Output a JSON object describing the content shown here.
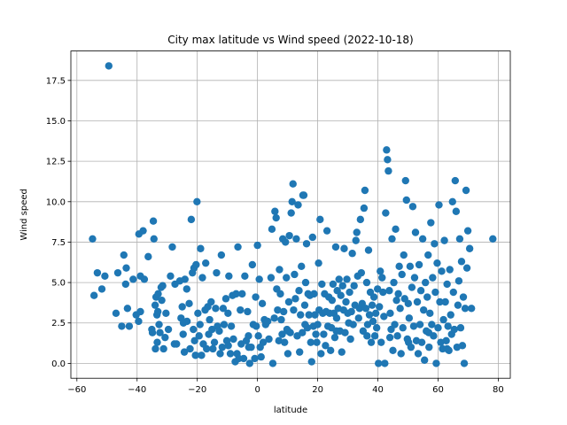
{
  "chart_data": {
    "type": "scatter",
    "title": "City max latitude vs Wind speed (2022-10-18)",
    "xlabel": "latitude",
    "ylabel": "Wind speed",
    "xlim": [
      -62,
      84
    ],
    "ylim": [
      -0.92,
      19.32
    ],
    "xticks": [
      -60,
      -40,
      -20,
      0,
      20,
      40,
      60,
      80
    ],
    "xtick_labels": [
      "−60",
      "−40",
      "−20",
      "0",
      "20",
      "40",
      "60",
      "80"
    ],
    "yticks": [
      0,
      2.5,
      5,
      7.5,
      10,
      12.5,
      15,
      17.5
    ],
    "ytick_labels": [
      "0.0",
      "2.5",
      "5.0",
      "7.5",
      "10.0",
      "12.5",
      "15.0",
      "17.5"
    ],
    "grid": true,
    "color": "#1f77b4",
    "points": [
      [
        -54.8,
        7.7
      ],
      [
        -54.3,
        4.2
      ],
      [
        -53.2,
        5.6
      ],
      [
        -51.7,
        4.6
      ],
      [
        -50.7,
        5.4
      ],
      [
        -49.4,
        18.4
      ],
      [
        -47.0,
        3.1
      ],
      [
        -46.4,
        5.6
      ],
      [
        -45.1,
        2.3
      ],
      [
        -44.4,
        6.7
      ],
      [
        -43.8,
        4.9
      ],
      [
        -43.6,
        5.9
      ],
      [
        -43.2,
        3.4
      ],
      [
        -42.6,
        2.3
      ],
      [
        -41.3,
        5.2
      ],
      [
        -40.3,
        3.0
      ],
      [
        -39.5,
        2.6
      ],
      [
        -39.4,
        8.0
      ],
      [
        -38.9,
        3.2
      ],
      [
        -38.9,
        5.4
      ],
      [
        -38.0,
        8.2
      ],
      [
        -37.6,
        5.2
      ],
      [
        -36.3,
        6.6
      ],
      [
        -35.1,
        2.1
      ],
      [
        -34.9,
        1.9
      ],
      [
        -34.6,
        8.8
      ],
      [
        -34.4,
        7.7
      ],
      [
        -34.0,
        3.6
      ],
      [
        -33.9,
        0.9
      ],
      [
        -33.7,
        4.1
      ],
      [
        -33.4,
        3.0
      ],
      [
        -33.3,
        1.3
      ],
      [
        -33.1,
        3.2
      ],
      [
        -33.0,
        4.3
      ],
      [
        -32.7,
        2.4
      ],
      [
        -32.4,
        1.9
      ],
      [
        -32.0,
        4.7
      ],
      [
        -31.8,
        3.9
      ],
      [
        -31.5,
        4.8
      ],
      [
        -31.2,
        0.9
      ],
      [
        -30.7,
        1.6
      ],
      [
        -30.4,
        3.1
      ],
      [
        -29.6,
        2.1
      ],
      [
        -28.9,
        5.4
      ],
      [
        -28.3,
        7.2
      ],
      [
        -27.6,
        1.2
      ],
      [
        -27.4,
        4.9
      ],
      [
        -26.9,
        1.2
      ],
      [
        -25.8,
        5.1
      ],
      [
        -25.4,
        2.8
      ],
      [
        -25.0,
        3.5
      ],
      [
        -24.7,
        1.8
      ],
      [
        -24.3,
        0.7
      ],
      [
        -24.1,
        5.2
      ],
      [
        -23.5,
        4.6
      ],
      [
        -23.4,
        2.6
      ],
      [
        -22.7,
        3.7
      ],
      [
        -22.4,
        0.9
      ],
      [
        -22.0,
        8.9
      ],
      [
        -21.6,
        5.6
      ],
      [
        -21.3,
        2.1
      ],
      [
        -21.1,
        5.9
      ],
      [
        -20.9,
        1.4
      ],
      [
        -20.6,
        0.5
      ],
      [
        -20.4,
        6.1
      ],
      [
        -20.1,
        10.0
      ],
      [
        -19.8,
        3.1
      ],
      [
        -19.4,
        1.7
      ],
      [
        -19.1,
        2.4
      ],
      [
        -18.9,
        7.1
      ],
      [
        -18.6,
        0.5
      ],
      [
        -18.3,
        5.3
      ],
      [
        -18.0,
        1.2
      ],
      [
        -17.4,
        3.3
      ],
      [
        -17.2,
        6.2
      ],
      [
        -16.9,
        0.9
      ],
      [
        -16.5,
        3.5
      ],
      [
        -16.2,
        1.8
      ],
      [
        -15.9,
        2.7
      ],
      [
        -15.4,
        3.8
      ],
      [
        -15.1,
        2.1
      ],
      [
        -14.8,
        0.9
      ],
      [
        -14.3,
        1.3
      ],
      [
        -13.9,
        3.4
      ],
      [
        -13.6,
        5.6
      ],
      [
        -13.3,
        2.3
      ],
      [
        -12.7,
        2.0
      ],
      [
        -12.4,
        0.6
      ],
      [
        -12.0,
        6.7
      ],
      [
        -11.7,
        1.0
      ],
      [
        -11.4,
        3.4
      ],
      [
        -11.1,
        2.4
      ],
      [
        -10.5,
        4.0
      ],
      [
        -10.2,
        1.4
      ],
      [
        -9.8,
        3.1
      ],
      [
        -9.5,
        5.4
      ],
      [
        -9.0,
        0.6
      ],
      [
        -8.7,
        2.3
      ],
      [
        -8.3,
        4.2
      ],
      [
        -8.0,
        1.5
      ],
      [
        -7.4,
        0.1
      ],
      [
        -7.1,
        4.3
      ],
      [
        -6.8,
        0.6
      ],
      [
        -6.5,
        7.2
      ],
      [
        -6.2,
        0.3
      ],
      [
        -5.7,
        3.3
      ],
      [
        -5.4,
        1.2
      ],
      [
        -5.1,
        4.3
      ],
      [
        -4.6,
        0.3
      ],
      [
        -4.2,
        5.4
      ],
      [
        -3.7,
        1.4
      ],
      [
        -3.3,
        3.2
      ],
      [
        -2.9,
        1.0
      ],
      [
        -2.6,
        0.0
      ],
      [
        -2.1,
        1.0
      ],
      [
        -1.7,
        6.1
      ],
      [
        -1.4,
        2.4
      ],
      [
        -0.9,
        0.3
      ],
      [
        -0.6,
        4.1
      ],
      [
        -0.4,
        2.3
      ],
      [
        0.0,
        7.3
      ],
      [
        0.3,
        1.7
      ],
      [
        0.6,
        5.2
      ],
      [
        0.9,
        1.0
      ],
      [
        1.2,
        0.4
      ],
      [
        1.6,
        3.7
      ],
      [
        1.9,
        1.3
      ],
      [
        2.3,
        2.7
      ],
      [
        2.7,
        2.4
      ],
      [
        3.4,
        2.6
      ],
      [
        3.8,
        1.5
      ],
      [
        4.5,
        5.3
      ],
      [
        4.8,
        8.3
      ],
      [
        5.1,
        0.0
      ],
      [
        5.6,
        2.8
      ],
      [
        5.8,
        9.4
      ],
      [
        6.2,
        9.0
      ],
      [
        6.4,
        4.6
      ],
      [
        6.7,
        3.3
      ],
      [
        7.1,
        1.4
      ],
      [
        7.3,
        5.8
      ],
      [
        7.6,
        4.3
      ],
      [
        7.9,
        2.7
      ],
      [
        8.2,
        1.8
      ],
      [
        8.4,
        7.7
      ],
      [
        8.7,
        3.2
      ],
      [
        9.0,
        1.3
      ],
      [
        9.3,
        7.5
      ],
      [
        9.6,
        5.3
      ],
      [
        9.8,
        2.1
      ],
      [
        10.1,
        0.6
      ],
      [
        10.4,
        3.8
      ],
      [
        10.6,
        7.9
      ],
      [
        10.9,
        1.9
      ],
      [
        11.2,
        9.3
      ],
      [
        11.5,
        10.0
      ],
      [
        11.8,
        11.1
      ],
      [
        12.0,
        3.3
      ],
      [
        12.3,
        5.5
      ],
      [
        12.6,
        4.0
      ],
      [
        12.9,
        7.7
      ],
      [
        13.2,
        1.7
      ],
      [
        13.5,
        9.8
      ],
      [
        13.8,
        4.5
      ],
      [
        14.0,
        0.7
      ],
      [
        14.3,
        3.0
      ],
      [
        14.6,
        6.0
      ],
      [
        14.9,
        1.9
      ],
      [
        15.1,
        10.4
      ],
      [
        15.4,
        10.4
      ],
      [
        15.7,
        3.6
      ],
      [
        16.0,
        5.0
      ],
      [
        16.3,
        7.4
      ],
      [
        16.6,
        2.2
      ],
      [
        16.8,
        4.3
      ],
      [
        17.1,
        3.0
      ],
      [
        17.4,
        4.2
      ],
      [
        17.7,
        1.3
      ],
      [
        18.0,
        0.1
      ],
      [
        18.3,
        7.8
      ],
      [
        18.6,
        2.3
      ],
      [
        18.8,
        4.3
      ],
      [
        19.1,
        3.0
      ],
      [
        19.4,
        1.8
      ],
      [
        19.7,
        1.3
      ],
      [
        20.0,
        2.4
      ],
      [
        20.3,
        6.2
      ],
      [
        20.5,
        3.3
      ],
      [
        20.8,
        8.9
      ],
      [
        21.1,
        0.6
      ],
      [
        21.4,
        4.9
      ],
      [
        21.7,
        3.1
      ],
      [
        22.0,
        1.8
      ],
      [
        22.3,
        4.3
      ],
      [
        22.6,
        1.1
      ],
      [
        22.8,
        3.2
      ],
      [
        23.1,
        8.2
      ],
      [
        23.4,
        2.3
      ],
      [
        23.7,
        4.1
      ],
      [
        24.0,
        3.1
      ],
      [
        24.3,
        0.8
      ],
      [
        24.6,
        2.2
      ],
      [
        24.8,
        3.9
      ],
      [
        25.1,
        4.9
      ],
      [
        25.4,
        3.1
      ],
      [
        25.7,
        1.6
      ],
      [
        26.0,
        7.2
      ],
      [
        26.3,
        2.8
      ],
      [
        26.5,
        4.5
      ],
      [
        26.8,
        3.4
      ],
      [
        27.1,
        5.2
      ],
      [
        27.4,
        2.0
      ],
      [
        27.7,
        4.2
      ],
      [
        28.0,
        0.7
      ],
      [
        28.3,
        4.8
      ],
      [
        28.6,
        3.3
      ],
      [
        28.8,
        7.1
      ],
      [
        29.1,
        1.9
      ],
      [
        29.4,
        3.8
      ],
      [
        29.7,
        5.2
      ],
      [
        30.0,
        3.1
      ],
      [
        30.3,
        2.5
      ],
      [
        30.6,
        4.4
      ],
      [
        30.9,
        1.5
      ],
      [
        31.2,
        3.2
      ],
      [
        31.5,
        6.8
      ],
      [
        31.8,
        2.4
      ],
      [
        32.1,
        4.8
      ],
      [
        32.4,
        3.6
      ],
      [
        32.7,
        7.6
      ],
      [
        33.0,
        8.1
      ],
      [
        33.3,
        5.4
      ],
      [
        33.6,
        2.8
      ],
      [
        33.9,
        3.4
      ],
      [
        34.2,
        8.9
      ],
      [
        34.5,
        5.6
      ],
      [
        34.8,
        3.7
      ],
      [
        35.1,
        2.0
      ],
      [
        35.4,
        9.6
      ],
      [
        35.7,
        10.7
      ],
      [
        36.0,
        3.4
      ],
      [
        36.3,
        5.0
      ],
      [
        36.6,
        2.4
      ],
      [
        36.9,
        7.0
      ],
      [
        37.2,
        3.0
      ],
      [
        37.5,
        4.4
      ],
      [
        37.8,
        1.3
      ],
      [
        38.1,
        3.6
      ],
      [
        38.4,
        2.6
      ],
      [
        38.7,
        4.1
      ],
      [
        39.0,
        1.7
      ],
      [
        39.3,
        3.1
      ],
      [
        39.6,
        2.2
      ],
      [
        39.9,
        4.6
      ],
      [
        40.2,
        0.0
      ],
      [
        40.5,
        3.5
      ],
      [
        40.8,
        5.7
      ],
      [
        41.1,
        1.3
      ],
      [
        41.4,
        5.3
      ],
      [
        41.7,
        4.4
      ],
      [
        42.0,
        2.9
      ],
      [
        42.3,
        0.0
      ],
      [
        42.6,
        9.3
      ],
      [
        42.9,
        13.2
      ],
      [
        43.2,
        12.6
      ],
      [
        43.5,
        11.9
      ],
      [
        43.8,
        4.5
      ],
      [
        44.1,
        3.1
      ],
      [
        44.4,
        2.1
      ],
      [
        44.7,
        7.7
      ],
      [
        45.0,
        0.8
      ],
      [
        45.3,
        5.0
      ],
      [
        45.6,
        2.4
      ],
      [
        45.9,
        8.3
      ],
      [
        46.2,
        3.9
      ],
      [
        46.5,
        1.7
      ],
      [
        46.8,
        4.3
      ],
      [
        47.1,
        6.0
      ],
      [
        47.4,
        3.4
      ],
      [
        47.7,
        0.6
      ],
      [
        48.0,
        5.5
      ],
      [
        48.3,
        2.2
      ],
      [
        48.6,
        6.7
      ],
      [
        48.9,
        4.0
      ],
      [
        49.2,
        11.3
      ],
      [
        49.5,
        10.1
      ],
      [
        49.8,
        1.5
      ],
      [
        50.1,
        3.7
      ],
      [
        50.4,
        2.8
      ],
      [
        50.7,
        6.0
      ],
      [
        51.0,
        1.0
      ],
      [
        51.3,
        4.7
      ],
      [
        51.6,
        9.7
      ],
      [
        51.9,
        2.3
      ],
      [
        52.2,
        5.3
      ],
      [
        52.5,
        8.1
      ],
      [
        52.8,
        1.4
      ],
      [
        53.1,
        3.8
      ],
      [
        53.4,
        0.6
      ],
      [
        53.7,
        6.1
      ],
      [
        54.0,
        2.4
      ],
      [
        54.3,
        4.5
      ],
      [
        54.6,
        1.3
      ],
      [
        54.9,
        7.7
      ],
      [
        55.2,
        3.3
      ],
      [
        55.5,
        0.2
      ],
      [
        55.8,
        5.0
      ],
      [
        56.1,
        2.0
      ],
      [
        56.4,
        4.1
      ],
      [
        56.7,
        6.7
      ],
      [
        57.0,
        1.0
      ],
      [
        57.3,
        3.1
      ],
      [
        57.6,
        8.7
      ],
      [
        57.9,
        2.4
      ],
      [
        58.2,
        5.3
      ],
      [
        58.5,
        1.7
      ],
      [
        58.8,
        7.4
      ],
      [
        59.1,
        4.4
      ],
      [
        59.4,
        0.0
      ],
      [
        59.7,
        6.2
      ],
      [
        60.0,
        2.2
      ],
      [
        60.3,
        9.8
      ],
      [
        60.6,
        3.8
      ],
      [
        60.9,
        1.3
      ],
      [
        61.2,
        5.7
      ],
      [
        61.5,
        0.9
      ],
      [
        61.8,
        2.7
      ],
      [
        62.1,
        7.6
      ],
      [
        62.4,
        3.8
      ],
      [
        62.7,
        1.4
      ],
      [
        63.0,
        4.9
      ],
      [
        63.3,
        2.3
      ],
      [
        63.6,
        0.8
      ],
      [
        63.9,
        5.8
      ],
      [
        64.2,
        3.0
      ],
      [
        64.5,
        1.8
      ],
      [
        64.8,
        10.0
      ],
      [
        65.1,
        4.4
      ],
      [
        65.4,
        2.1
      ],
      [
        65.7,
        11.3
      ],
      [
        66.0,
        9.4
      ],
      [
        66.3,
        1.0
      ],
      [
        66.6,
        3.6
      ],
      [
        66.9,
        5.1
      ],
      [
        67.2,
        7.7
      ],
      [
        67.5,
        2.2
      ],
      [
        67.8,
        6.3
      ],
      [
        68.1,
        1.1
      ],
      [
        68.4,
        4.1
      ],
      [
        68.7,
        0.0
      ],
      [
        69.0,
        3.4
      ],
      [
        69.3,
        10.7
      ],
      [
        69.6,
        5.9
      ],
      [
        69.9,
        8.2
      ],
      [
        70.5,
        7.1
      ],
      [
        71.1,
        3.4
      ],
      [
        78.2,
        7.7
      ],
      [
        -24.6,
        2.5
      ],
      [
        10.2,
        2.0
      ],
      [
        15.8,
        2.4
      ],
      [
        26.2,
        2.0
      ],
      [
        36.4,
        1.7
      ],
      [
        44.0,
        1.6
      ],
      [
        50.2,
        1.3
      ],
      [
        56.9,
        1.9
      ],
      [
        63.0,
        0.9
      ],
      [
        -9.7,
        1.1
      ],
      [
        -3.0,
        1.7
      ]
    ]
  }
}
